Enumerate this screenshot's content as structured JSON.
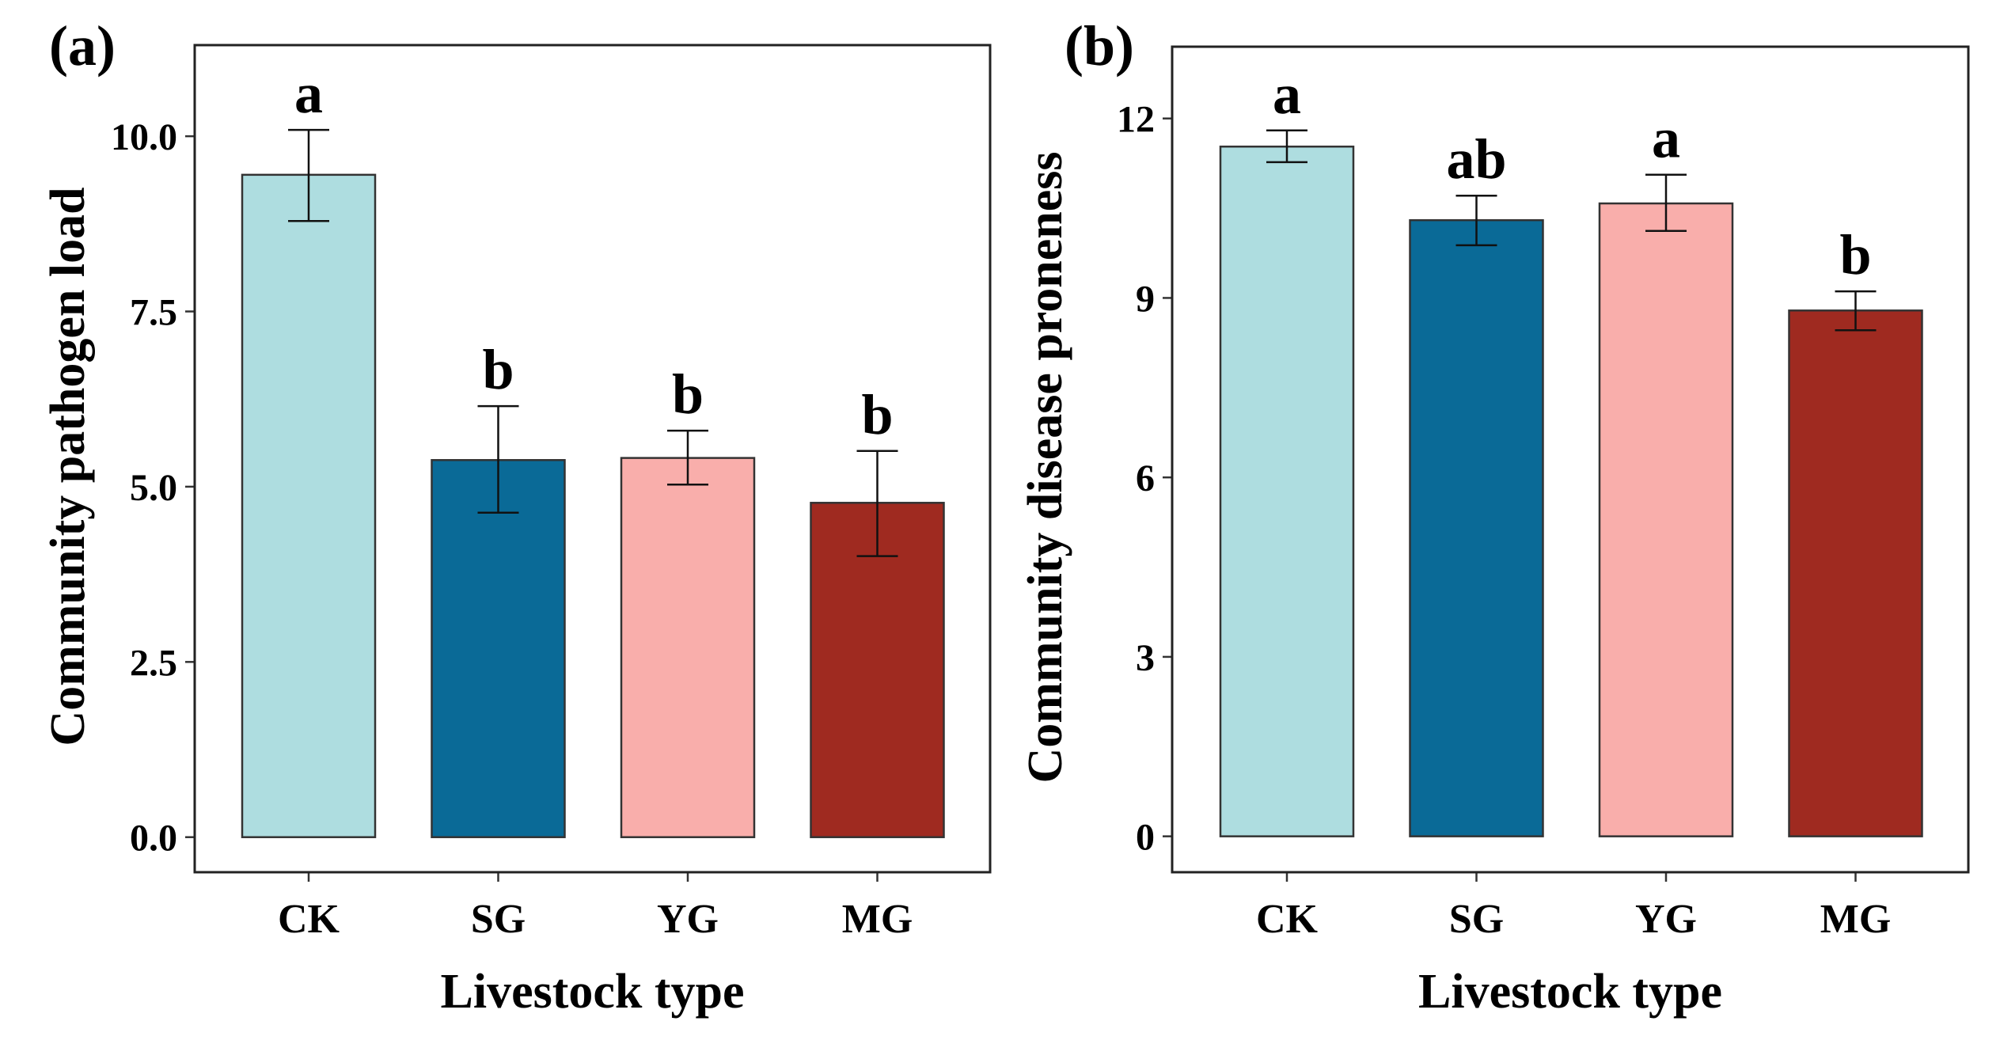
{
  "chart_data": [
    {
      "type": "bar",
      "panel_label": "(a)",
      "categories": [
        "CK",
        "SG",
        "YG",
        "MG"
      ],
      "values": [
        9.45,
        5.38,
        5.41,
        4.77
      ],
      "error_upper": [
        10.09,
        6.15,
        5.8,
        5.51
      ],
      "error_lower": [
        8.79,
        4.63,
        5.03,
        4.01
      ],
      "significance_letters": [
        "a",
        "b",
        "b",
        "b"
      ],
      "colors": [
        "#aedde0",
        "#0a6a97",
        "#f9aeab",
        "#9f2a20"
      ],
      "xlabel": "Livestock type",
      "ylabel": "Community pathogen load",
      "yticks": [
        "0.0",
        "2.5",
        "5.0",
        "7.5",
        "10.0"
      ],
      "ytick_values": [
        0,
        2.5,
        5,
        7.5,
        10
      ],
      "ylim": [
        -0.5,
        11.3
      ],
      "grid": false
    },
    {
      "type": "bar",
      "panel_label": "(b)",
      "categories": [
        "CK",
        "SG",
        "YG",
        "MG"
      ],
      "values": [
        11.53,
        10.3,
        10.58,
        8.79
      ],
      "error_upper": [
        11.8,
        10.71,
        11.06,
        9.11
      ],
      "error_lower": [
        11.27,
        9.88,
        10.12,
        8.46
      ],
      "significance_letters": [
        "a",
        "ab",
        "a",
        "b"
      ],
      "colors": [
        "#aedde0",
        "#0a6a97",
        "#f9aeab",
        "#9f2a20"
      ],
      "xlabel": "Livestock type",
      "ylabel": "Community disease proneness",
      "yticks": [
        "0",
        "3",
        "6",
        "9",
        "12"
      ],
      "ytick_values": [
        0,
        3,
        6,
        9,
        12
      ],
      "ylim": [
        -0.6,
        13.2
      ],
      "grid": false
    }
  ]
}
